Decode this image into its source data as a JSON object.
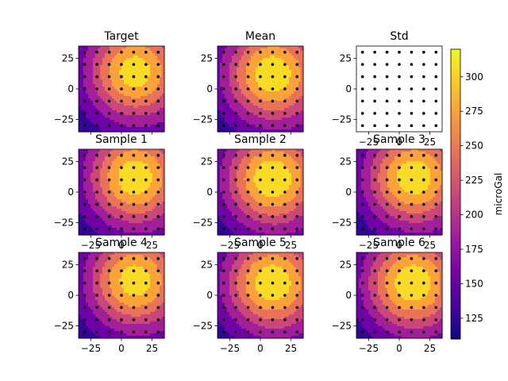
{
  "chart_data": {
    "type": "heatmap",
    "xlim": [
      -35,
      35
    ],
    "ylim": [
      -35,
      35
    ],
    "x_ticks": [
      -25,
      0,
      25
    ],
    "y_ticks": [
      -25,
      0,
      25
    ],
    "x_tick_labels": [
      "−25",
      "0",
      "25"
    ],
    "y_tick_labels": [
      "−25",
      "0",
      "25"
    ],
    "grid": false,
    "panels": [
      {
        "title": "Target",
        "filled": true,
        "peak_x": 10,
        "peak_y": 14,
        "peak_value": 305,
        "x_tick_labels_visible": false
      },
      {
        "title": "Mean",
        "filled": true,
        "peak_x": 9,
        "peak_y": 12,
        "peak_value": 312,
        "x_tick_labels_visible": false
      },
      {
        "title": "Std",
        "filled": false,
        "x_tick_labels_visible": true
      },
      {
        "title": "Sample 1",
        "filled": true,
        "peak_x": 10,
        "peak_y": 12,
        "peak_value": 310,
        "x_tick_labels_visible": true
      },
      {
        "title": "Sample 2",
        "filled": true,
        "peak_x": 9,
        "peak_y": 11,
        "peak_value": 315,
        "x_tick_labels_visible": true
      },
      {
        "title": "Sample 3",
        "filled": true,
        "peak_x": 11,
        "peak_y": 12,
        "peak_value": 310,
        "x_tick_labels_visible": true
      },
      {
        "title": "Sample 4",
        "filled": true,
        "peak_x": 10,
        "peak_y": 12,
        "peak_value": 305,
        "x_tick_labels_visible": true
      },
      {
        "title": "Sample 5",
        "filled": true,
        "peak_x": 9,
        "peak_y": 10,
        "peak_value": 312,
        "x_tick_labels_visible": true
      },
      {
        "title": "Sample 6",
        "filled": true,
        "peak_x": 10,
        "peak_y": 10,
        "peak_value": 312,
        "x_tick_labels_visible": true
      }
    ],
    "observation_points": {
      "x": [
        -30,
        -20,
        -10,
        0,
        10,
        20,
        30
      ],
      "y": [
        -30,
        -20,
        -10,
        0,
        10,
        20,
        30
      ]
    },
    "colorbar": {
      "label": "microGal",
      "range": [
        110,
        320
      ],
      "ticks": [
        125,
        150,
        175,
        200,
        225,
        250,
        275,
        300
      ],
      "contour_levels": [
        110,
        140,
        170,
        200,
        230,
        260,
        290,
        320
      ],
      "colors": [
        "#0d0887",
        "#6a00a8",
        "#b12a90",
        "#e16462",
        "#fca636",
        "#f0f921"
      ]
    }
  }
}
